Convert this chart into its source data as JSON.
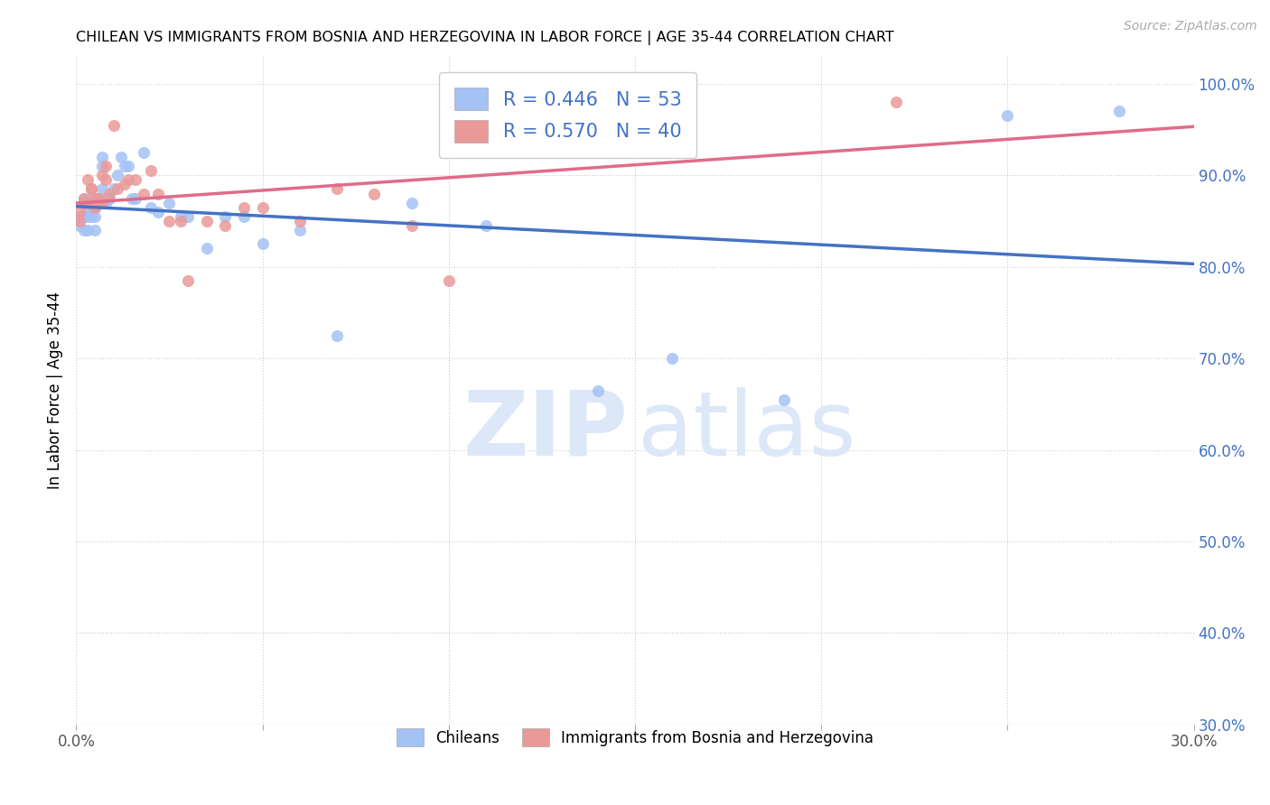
{
  "title": "CHILEAN VS IMMIGRANTS FROM BOSNIA AND HERZEGOVINA IN LABOR FORCE | AGE 35-44 CORRELATION CHART",
  "source": "Source: ZipAtlas.com",
  "ylabel": "In Labor Force | Age 35-44",
  "xlim": [
    0.0,
    0.3
  ],
  "ylim": [
    0.3,
    1.03
  ],
  "x_ticks": [
    0.0,
    0.05,
    0.1,
    0.15,
    0.2,
    0.25,
    0.3
  ],
  "x_tick_labels": [
    "0.0%",
    "",
    "",
    "",
    "",
    "",
    "30.0%"
  ],
  "y_ticks": [
    0.3,
    0.4,
    0.5,
    0.6,
    0.7,
    0.8,
    0.9,
    1.0
  ],
  "y_tick_labels_right": [
    "30.0%",
    "40.0%",
    "50.0%",
    "60.0%",
    "70.0%",
    "80.0%",
    "90.0%",
    "100.0%"
  ],
  "blue_color": "#a4c2f4",
  "pink_color": "#ea9999",
  "blue_line_color": "#4472c4",
  "pink_line_color": "#e06c8a",
  "legend_blue_r": "0.446",
  "legend_blue_n": "53",
  "legend_pink_r": "0.570",
  "legend_pink_n": "40",
  "chileans_x": [
    0.001,
    0.001,
    0.002,
    0.002,
    0.002,
    0.003,
    0.003,
    0.003,
    0.003,
    0.004,
    0.004,
    0.004,
    0.004,
    0.005,
    0.005,
    0.005,
    0.005,
    0.006,
    0.006,
    0.006,
    0.007,
    0.007,
    0.007,
    0.008,
    0.008,
    0.009,
    0.009,
    0.01,
    0.011,
    0.012,
    0.013,
    0.014,
    0.015,
    0.016,
    0.018,
    0.02,
    0.022,
    0.025,
    0.028,
    0.03,
    0.035,
    0.04,
    0.045,
    0.05,
    0.06,
    0.07,
    0.09,
    0.11,
    0.14,
    0.16,
    0.19,
    0.25,
    0.28
  ],
  "chileans_y": [
    0.855,
    0.845,
    0.875,
    0.855,
    0.84,
    0.865,
    0.87,
    0.855,
    0.84,
    0.875,
    0.86,
    0.87,
    0.855,
    0.865,
    0.87,
    0.855,
    0.84,
    0.87,
    0.875,
    0.87,
    0.885,
    0.91,
    0.92,
    0.875,
    0.87,
    0.875,
    0.875,
    0.885,
    0.9,
    0.92,
    0.91,
    0.91,
    0.875,
    0.875,
    0.925,
    0.865,
    0.86,
    0.87,
    0.855,
    0.855,
    0.82,
    0.855,
    0.855,
    0.825,
    0.84,
    0.725,
    0.87,
    0.845,
    0.665,
    0.7,
    0.655,
    0.965,
    0.97
  ],
  "bosnia_x": [
    0.001,
    0.001,
    0.002,
    0.002,
    0.003,
    0.003,
    0.004,
    0.004,
    0.005,
    0.005,
    0.006,
    0.006,
    0.007,
    0.007,
    0.008,
    0.008,
    0.009,
    0.01,
    0.011,
    0.013,
    0.014,
    0.016,
    0.018,
    0.02,
    0.022,
    0.025,
    0.028,
    0.03,
    0.035,
    0.04,
    0.045,
    0.05,
    0.06,
    0.07,
    0.08,
    0.09,
    0.1,
    0.12,
    0.15,
    0.22
  ],
  "bosnia_y": [
    0.85,
    0.86,
    0.87,
    0.875,
    0.87,
    0.895,
    0.885,
    0.885,
    0.865,
    0.875,
    0.87,
    0.875,
    0.87,
    0.9,
    0.91,
    0.895,
    0.88,
    0.955,
    0.885,
    0.89,
    0.895,
    0.895,
    0.88,
    0.905,
    0.88,
    0.85,
    0.85,
    0.785,
    0.85,
    0.845,
    0.865,
    0.865,
    0.85,
    0.885,
    0.88,
    0.845,
    0.785,
    0.94,
    0.97,
    0.98
  ]
}
